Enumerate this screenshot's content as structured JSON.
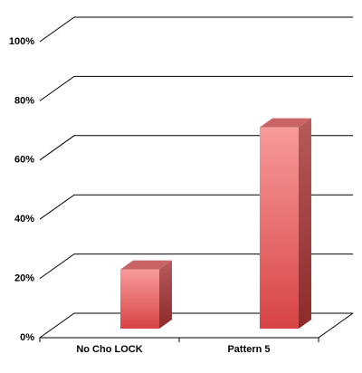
{
  "chart_data": {
    "type": "bar3d",
    "categories": [
      "No Cho LOCK",
      "Pattern 5"
    ],
    "values": [
      20,
      68
    ],
    "color": "#e85a5c",
    "ylim": [
      0,
      100
    ],
    "yticks": [
      {
        "value": 0,
        "label": "0%"
      },
      {
        "value": 20,
        "label": "20%"
      },
      {
        "value": 40,
        "label": "40%"
      },
      {
        "value": 60,
        "label": "60%"
      },
      {
        "value": 80,
        "label": "80%"
      },
      {
        "value": 100,
        "label": "100%"
      }
    ],
    "grid": true
  }
}
